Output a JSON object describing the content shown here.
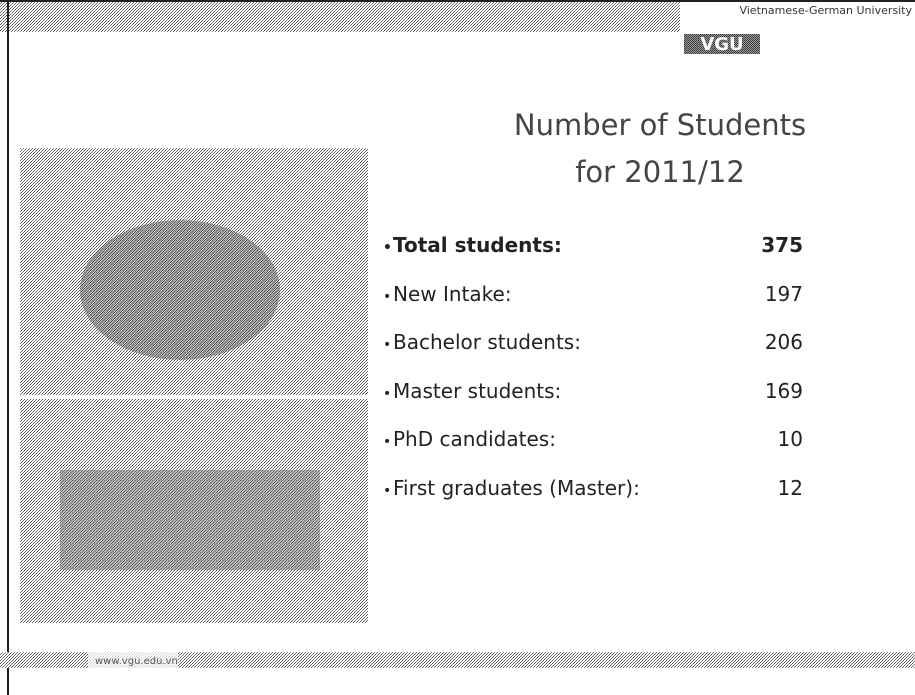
{
  "header": {
    "organization": "Vietnamese-German University",
    "logo": "VGU"
  },
  "title": {
    "line1": "Number of Students",
    "line2": "for 2011/12"
  },
  "items": [
    {
      "label": "Total students:",
      "value": 375,
      "bold": true
    },
    {
      "label": "New Intake:",
      "value": 197
    },
    {
      "label": "Bachelor students:",
      "value": 206
    },
    {
      "label": "Master students:",
      "value": 169
    },
    {
      "label": "PhD candidates:",
      "value": 10
    },
    {
      "label": "First graduates (Master):",
      "value": 12
    }
  ],
  "footer": {
    "url": "www.vgu.edu.vn"
  }
}
